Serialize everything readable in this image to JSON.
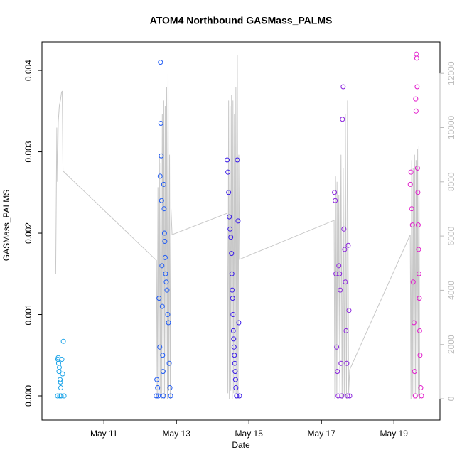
{
  "chart_data": {
    "type": "scatter",
    "title": "ATOM4 Northbound GASMass_PALMS",
    "x_label": "Date",
    "y_label": "GASMass_PALMS",
    "xlim": [
      9.29,
      20.27
    ],
    "xticks": [
      {
        "value": 11,
        "label": "May 11"
      },
      {
        "value": 13,
        "label": "May 13"
      },
      {
        "value": 15,
        "label": "May 15"
      },
      {
        "value": 17,
        "label": "May 17"
      },
      {
        "value": 19,
        "label": "May 19"
      }
    ],
    "ylim": [
      -0.000297,
      0.00435
    ],
    "yticks": [
      {
        "value": 0,
        "label": "0.000"
      },
      {
        "value": 0.001,
        "label": "0.001"
      },
      {
        "value": 0.002,
        "label": "0.002"
      },
      {
        "value": 0.003,
        "label": "0.003"
      },
      {
        "value": 0.004,
        "label": "0.004"
      }
    ],
    "y2lim": [
      -786,
      13158
    ],
    "y2ticks": [
      0,
      2000,
      4000,
      6000,
      8000,
      10000,
      12000
    ],
    "series": [
      {
        "type": "line",
        "axis": "y2",
        "color": "#c8c8c8",
        "x": [
          9.67,
          9.7,
          9.72,
          9.74,
          9.77,
          9.8,
          9.83,
          9.85,
          9.87,
          12.45,
          12.47,
          12.49,
          12.51,
          12.53,
          12.55,
          12.57,
          12.59,
          12.61,
          12.63,
          12.65,
          12.67,
          12.69,
          12.71,
          12.73,
          12.75,
          12.77,
          12.79,
          12.81,
          12.83,
          12.85,
          12.88,
          14.4,
          14.42,
          14.44,
          14.46,
          14.48,
          14.5,
          14.52,
          14.54,
          14.56,
          14.58,
          14.6,
          14.62,
          14.64,
          14.66,
          14.68,
          14.7,
          14.72,
          14.74,
          17.35,
          17.37,
          17.39,
          17.41,
          17.43,
          17.45,
          17.48,
          17.51,
          17.54,
          17.57,
          17.6,
          17.63,
          17.66,
          17.69,
          17.72,
          17.75,
          17.78,
          19.45,
          19.47,
          19.49,
          19.51,
          19.53,
          19.55,
          19.57,
          19.59,
          19.61,
          19.63,
          19.65,
          19.67,
          19.69,
          19.71
        ],
        "values": [
          4600,
          10000,
          8000,
          10200,
          10800,
          11000,
          11300,
          11350,
          8400,
          5100,
          0,
          7800,
          200,
          9000,
          100,
          8700,
          0,
          10500,
          300,
          11000,
          0,
          10800,
          200,
          11500,
          0,
          12000,
          300,
          9000,
          0,
          7000,
          6050,
          6840,
          200,
          11000,
          0,
          10800,
          300,
          11200,
          0,
          11000,
          200,
          10500,
          0,
          11500,
          200,
          12660,
          0,
          9000,
          5140,
          6580,
          0,
          8200,
          100,
          8000,
          0,
          7500,
          200,
          9000,
          0,
          8500,
          100,
          10500,
          0,
          11000,
          200,
          1075,
          6050,
          0,
          8800,
          100,
          8500,
          0,
          9000,
          200,
          8800,
          0,
          9200,
          100,
          9330,
          0
        ]
      },
      {
        "color": "#1aa3e8",
        "x": [
          9.72,
          9.73,
          9.74,
          9.75,
          9.76,
          9.77,
          9.78,
          9.79,
          9.8,
          9.81,
          9.82,
          9.84,
          9.86,
          9.88,
          9.9
        ],
        "values": [
          0,
          0.00045,
          0.00047,
          0.0004,
          0.0003,
          0.00035,
          0,
          0.0002,
          0.00017,
          0.0001,
          0,
          0.00045,
          0.00027,
          0.00067,
          0
        ]
      },
      {
        "color": "#1e5af5",
        "x": [
          12.44,
          12.46,
          12.48,
          12.5,
          12.52,
          12.54,
          12.55,
          12.56,
          12.57,
          12.58,
          12.59,
          12.6,
          12.61,
          12.62,
          12.63,
          12.64,
          12.65,
          12.66,
          12.67,
          12.68,
          12.69,
          12.7,
          12.72,
          12.74,
          12.76,
          12.78,
          12.8,
          12.82,
          12.84
        ],
        "values": [
          0,
          0.0002,
          0.0001,
          0,
          0.0012,
          0.0006,
          0.0027,
          0.0041,
          0.00335,
          0.00295,
          0.0024,
          0.0016,
          0.0011,
          0.0005,
          0.0003,
          0,
          0.0026,
          0.0023,
          0.002,
          0.0019,
          0.0017,
          0.0015,
          0.0014,
          0.0013,
          0.001,
          0.0009,
          0.0004,
          0.0001,
          0
        ]
      },
      {
        "color": "#3a1ae8",
        "x": [
          14.4,
          14.42,
          14.44,
          14.46,
          14.48,
          14.5,
          14.52,
          14.53,
          14.54,
          14.55,
          14.56,
          14.57,
          14.58,
          14.59,
          14.6,
          14.61,
          14.62,
          14.63,
          14.64,
          14.66,
          14.68,
          14.7,
          14.72,
          14.74
        ],
        "values": [
          0.0029,
          0.00275,
          0.0025,
          0.0022,
          0.00205,
          0.00195,
          0.00175,
          0.0015,
          0.0013,
          0.0012,
          0.001,
          0.0008,
          0.0007,
          0.0006,
          0.0005,
          0.0004,
          0.0003,
          0.0002,
          0.0001,
          0,
          0.0029,
          0.00215,
          0.0009,
          0
        ]
      },
      {
        "color": "#8a22dd",
        "x": [
          17.36,
          17.38,
          17.4,
          17.42,
          17.44,
          17.46,
          17.48,
          17.5,
          17.52,
          17.54,
          17.56,
          17.58,
          17.6,
          17.62,
          17.64,
          17.66,
          17.68,
          17.7,
          17.72,
          17.74,
          17.76,
          17.78
        ],
        "values": [
          0.0025,
          0.0024,
          0.0015,
          0.0006,
          0.0003,
          0,
          0.0016,
          0.0015,
          0.0013,
          0.0004,
          0,
          0.0034,
          0.0038,
          0.00205,
          0.0018,
          0.0014,
          0.0008,
          0.0004,
          0,
          0.00185,
          0.00105,
          0
        ]
      },
      {
        "color": "#e21ccc",
        "x": [
          19.45,
          19.47,
          19.49,
          19.51,
          19.53,
          19.55,
          19.57,
          19.59,
          19.6,
          19.61,
          19.62,
          19.63,
          19.64,
          19.65,
          19.66,
          19.67,
          19.68,
          19.69,
          19.7,
          19.71,
          19.72,
          19.74,
          19.76
        ],
        "values": [
          0.0026,
          0.00275,
          0.0023,
          0.0021,
          0.0014,
          0.0009,
          0.0003,
          0,
          0.00365,
          0.0035,
          0.0042,
          0.00415,
          0.0038,
          0.0028,
          0.0025,
          0.0021,
          0.0018,
          0.0015,
          0.0012,
          0.0008,
          0.0005,
          0.0001,
          0
        ]
      }
    ]
  }
}
